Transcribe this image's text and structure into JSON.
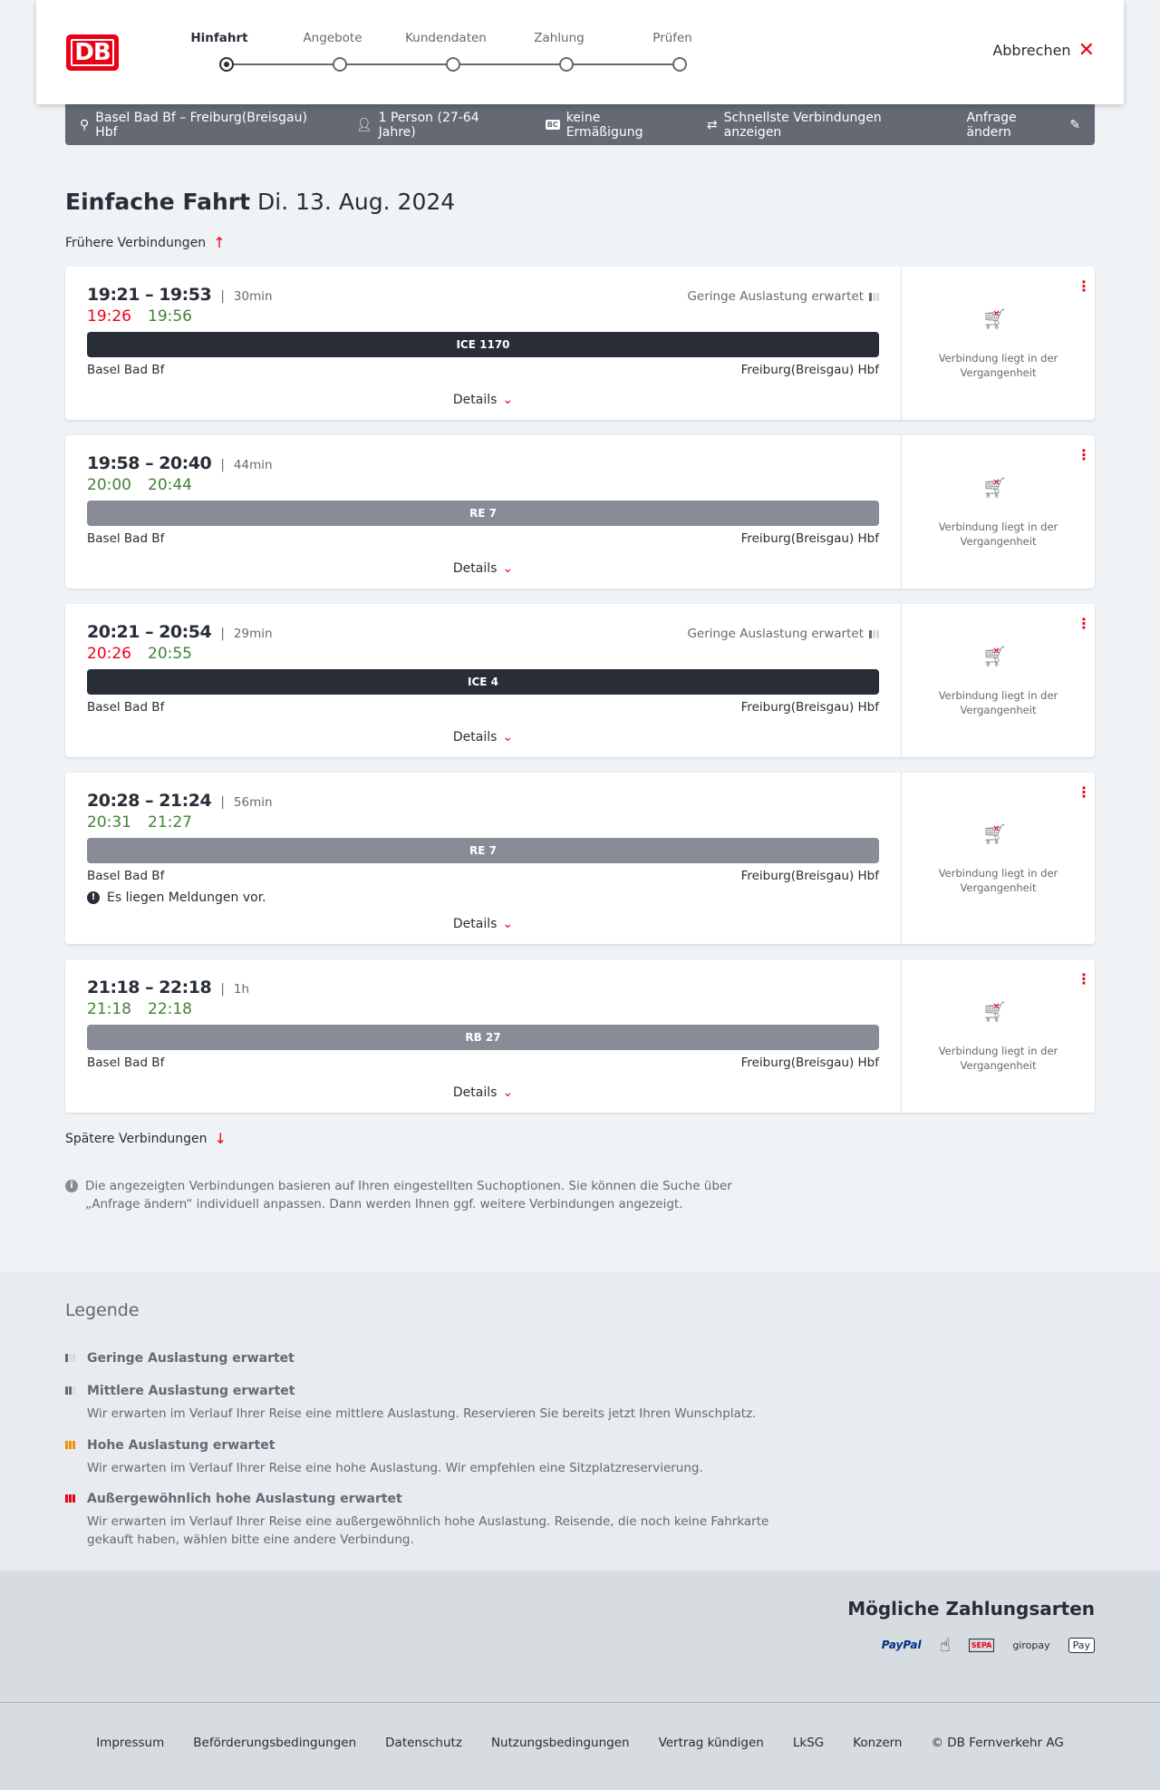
{
  "header": {
    "logo": "DB",
    "steps": [
      "Hinfahrt",
      "Angebote",
      "Kundendaten",
      "Zahlung",
      "Prüfen"
    ],
    "active_step": 0,
    "cancel_label": "Abbrechen"
  },
  "infobar": {
    "route": "Basel Bad Bf – Freiburg(Breisgau) Hbf",
    "passengers": "1 Person (27-64 Jahre)",
    "bc_badge": "BC",
    "discount": "keine Ermäßigung",
    "fastest": "Schnellste Verbindungen anzeigen",
    "edit": "Anfrage ändern"
  },
  "page": {
    "title": "Einfache Fahrt",
    "date": "Di. 13. Aug. 2024",
    "earlier": "Frühere Verbindungen",
    "later": "Spätere Verbindungen",
    "note": "Die angezeigten Verbindungen basieren auf Ihren eingestellten Suchoptionen. Sie können die Suche über „Anfrage ändern“ individuell anpassen. Dann werden Ihnen ggf. weitere Verbindungen angezeigt."
  },
  "connections": [
    {
      "planned": "19:21 – 19:53",
      "duration": "30min",
      "load": "Geringe Auslastung erwartet",
      "dep_real": "19:26",
      "dep_late": true,
      "arr_real": "19:56",
      "arr_late": false,
      "train": "ICE 1170",
      "type": "ice",
      "from": "Basel Bad Bf",
      "to": "Freiburg(Breisgau) Hbf",
      "message": "",
      "details": "Details",
      "status": "Verbindung liegt in der Vergangenheit"
    },
    {
      "planned": "19:58 – 20:40",
      "duration": "44min",
      "load": "",
      "dep_real": "20:00",
      "dep_late": false,
      "arr_real": "20:44",
      "arr_late": false,
      "train": "RE 7",
      "type": "re",
      "from": "Basel Bad Bf",
      "to": "Freiburg(Breisgau) Hbf",
      "message": "",
      "details": "Details",
      "status": "Verbindung liegt in der Vergangenheit"
    },
    {
      "planned": "20:21 – 20:54",
      "duration": "29min",
      "load": "Geringe Auslastung erwartet",
      "dep_real": "20:26",
      "dep_late": true,
      "arr_real": "20:55",
      "arr_late": false,
      "train": "ICE 4",
      "type": "ice",
      "from": "Basel Bad Bf",
      "to": "Freiburg(Breisgau) Hbf",
      "message": "",
      "details": "Details",
      "status": "Verbindung liegt in der Vergangenheit"
    },
    {
      "planned": "20:28 – 21:24",
      "duration": "56min",
      "load": "",
      "dep_real": "20:31",
      "dep_late": false,
      "arr_real": "21:27",
      "arr_late": false,
      "train": "RE 7",
      "type": "re",
      "from": "Basel Bad Bf",
      "to": "Freiburg(Breisgau) Hbf",
      "message": "Es liegen Meldungen vor.",
      "details": "Details",
      "status": "Verbindung liegt in der Vergangenheit"
    },
    {
      "planned": "21:18 – 22:18",
      "duration": "1h",
      "load": "",
      "dep_real": "21:18",
      "dep_late": false,
      "arr_real": "22:18",
      "arr_late": false,
      "train": "RB 27",
      "type": "re",
      "from": "Basel Bad Bf",
      "to": "Freiburg(Breisgau) Hbf",
      "message": "",
      "details": "Details",
      "status": "Verbindung liegt in der Vergangenheit"
    }
  ],
  "legend": {
    "title": "Legende",
    "items": [
      {
        "title": "Geringe Auslastung erwartet",
        "text": "",
        "level": 1,
        "color": "#646973"
      },
      {
        "title": "Mittlere Auslastung erwartet",
        "text": "Wir erwarten im Verlauf Ihrer Reise eine mittlere Auslastung. Reservieren Sie bereits jetzt Ihren Wunschplatz.",
        "level": 2,
        "color": "#646973"
      },
      {
        "title": "Hohe Auslastung erwartet",
        "text": "Wir erwarten im Verlauf Ihrer Reise eine hohe Auslastung. Wir empfehlen eine Sitzplatzreservierung.",
        "level": 3,
        "color": "#f39200"
      },
      {
        "title": "Außergewöhnlich hohe Auslastung erwartet",
        "text": "Wir erwarten im Verlauf Ihrer Reise eine außergewöhnlich hohe Auslastung. Reisende, die noch keine Fahrkarte gekauft haben, wählen bitte eine andere Verbindung.",
        "level": 4,
        "color": "#ec0016"
      }
    ]
  },
  "payment": {
    "title": "Mögliche Zahlungsarten",
    "methods": [
      "PayPal",
      "Kreditkarte",
      "SEPA",
      "giropay",
      "Pay"
    ]
  },
  "footer": {
    "links": [
      "Impressum",
      "Beförderungsbedingungen",
      "Datenschutz",
      "Nutzungsbedingungen",
      "Vertrag kündigen",
      "LkSG",
      "Konzern",
      "© DB Fernverkehr AG"
    ]
  },
  "colors": {
    "accent": "#ec0016",
    "delay": "#ec0016",
    "ontime": "#408335",
    "ice": "#282d37",
    "regional": "#878c96"
  }
}
